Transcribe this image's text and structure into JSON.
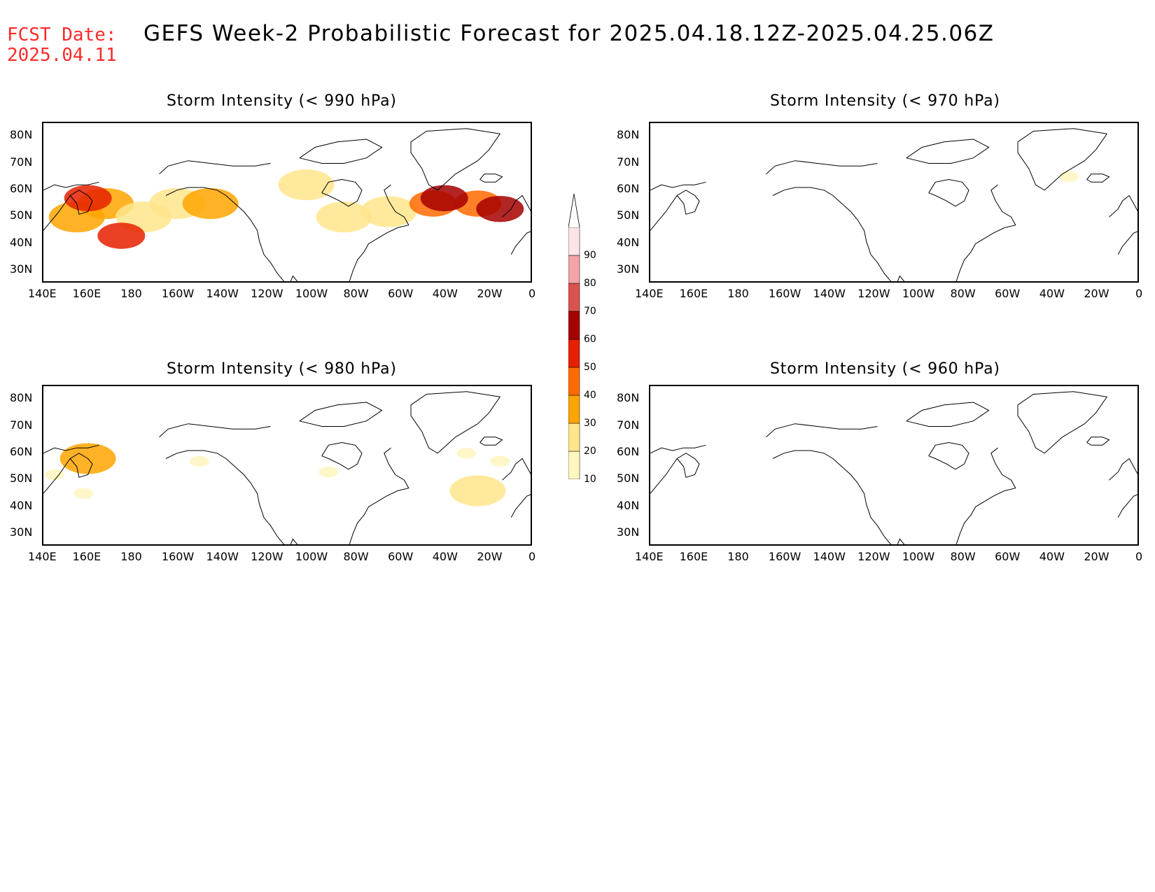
{
  "header": {
    "fcst_label": "FCST Date:",
    "fcst_date": "2025.04.11",
    "title": "GEFS Week-2 Probabilistic Forecast for 2025.04.18.12Z-2025.04.25.06Z"
  },
  "panels": [
    {
      "title": "Storm Intensity (< 990 hPa)",
      "coverage": "high"
    },
    {
      "title": "Storm Intensity (< 970 hPa)",
      "coverage": "trace"
    },
    {
      "title": "Storm Intensity (< 980 hPa)",
      "coverage": "low"
    },
    {
      "title": "Storm Intensity (< 960 hPa)",
      "coverage": "none"
    }
  ],
  "axes": {
    "lon_labels": [
      "140E",
      "160E",
      "180",
      "160W",
      "140W",
      "120W",
      "100W",
      "80W",
      "60W",
      "40W",
      "20W",
      "0"
    ],
    "lat_labels": [
      "80N",
      "70N",
      "60N",
      "50N",
      "40N",
      "30N"
    ]
  },
  "colorbar": {
    "levels": [
      "10",
      "20",
      "30",
      "40",
      "50",
      "60",
      "70",
      "80",
      "90"
    ],
    "colors": [
      "#fff6c0",
      "#ffe58c",
      "#ffa400",
      "#ff6a00",
      "#e62000",
      "#a50000",
      "#d9534f",
      "#f4a3a8",
      "#fde4e6"
    ]
  },
  "chart_data": {
    "type": "heatmap",
    "units": "probability (%)",
    "domain": {
      "lon": [
        140,
        360
      ],
      "lat": [
        25,
        85
      ]
    },
    "panels": [
      {
        "threshold": "< 990 hPa",
        "blobs": [
          {
            "lon": 155,
            "lat": 50,
            "p": 30
          },
          {
            "lon": 168,
            "lat": 55,
            "p": 30
          },
          {
            "lon": 185,
            "lat": 50,
            "p": 20
          },
          {
            "lon": 200,
            "lat": 55,
            "p": 20
          },
          {
            "lon": 215,
            "lat": 55,
            "p": 30
          },
          {
            "lon": 258,
            "lat": 62,
            "p": 20
          },
          {
            "lon": 275,
            "lat": 50,
            "p": 20
          },
          {
            "lon": 295,
            "lat": 52,
            "p": 20
          },
          {
            "lon": 315,
            "lat": 55,
            "p": 40
          },
          {
            "lon": 335,
            "lat": 55,
            "p": 40
          },
          {
            "lon": 345,
            "lat": 53,
            "p": 60
          },
          {
            "lon": 160,
            "lat": 57,
            "p": 50
          },
          {
            "lon": 175,
            "lat": 43,
            "p": 50
          },
          {
            "lon": 320,
            "lat": 57,
            "p": 60
          }
        ]
      },
      {
        "threshold": "< 970 hPa",
        "blobs": [
          {
            "lon": 328,
            "lat": 65,
            "p": 10
          }
        ]
      },
      {
        "threshold": "< 980 hPa",
        "blobs": [
          {
            "lon": 160,
            "lat": 58,
            "p": 30
          },
          {
            "lon": 158,
            "lat": 45,
            "p": 10
          },
          {
            "lon": 145,
            "lat": 52,
            "p": 10
          },
          {
            "lon": 210,
            "lat": 57,
            "p": 10
          },
          {
            "lon": 330,
            "lat": 60,
            "p": 10
          },
          {
            "lon": 345,
            "lat": 57,
            "p": 10
          },
          {
            "lon": 335,
            "lat": 46,
            "p": 20
          },
          {
            "lon": 268,
            "lat": 53,
            "p": 10
          }
        ]
      },
      {
        "threshold": "< 960 hPa",
        "blobs": []
      }
    ]
  }
}
